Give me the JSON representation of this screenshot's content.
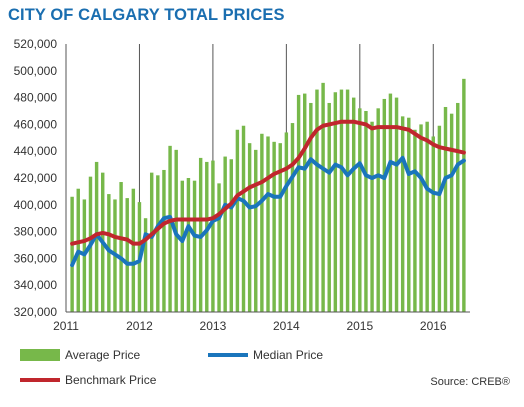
{
  "chart_data": {
    "type": "bar",
    "title": "CITY OF CALGARY TOTAL PRICES",
    "ylim": [
      320000,
      520000
    ],
    "yticks": [
      "520,000",
      "500,000",
      "480,000",
      "460,000",
      "440,000",
      "420,000",
      "400,000",
      "380,000",
      "360,000",
      "340,000",
      "320,000"
    ],
    "ytick_values": [
      520000,
      500000,
      480000,
      460000,
      440000,
      420000,
      400000,
      380000,
      360000,
      340000,
      320000
    ],
    "xticks": [
      "2011",
      "2012",
      "2013",
      "2014",
      "2015",
      "2016"
    ],
    "x_start": "2011-01",
    "x_end": "2016-05",
    "grid": "vertical-year-lines",
    "legend_placement": "bottom",
    "series": [
      {
        "name": "Average Price",
        "kind": "bar",
        "color": "#77b84a",
        "values": [
          406000,
          412000,
          404000,
          421000,
          432000,
          424000,
          408000,
          404000,
          417000,
          405000,
          412000,
          402000,
          390000,
          424000,
          422000,
          426000,
          444000,
          441000,
          418000,
          420000,
          418000,
          435000,
          432000,
          433000,
          416000,
          436000,
          434000,
          456000,
          459000,
          446000,
          441000,
          453000,
          451000,
          447000,
          446000,
          454000,
          461000,
          482000,
          483000,
          476000,
          486000,
          491000,
          476000,
          484000,
          486000,
          486000,
          480000,
          472000,
          470000,
          462000,
          472000,
          479000,
          483000,
          480000,
          466000,
          465000,
          456000,
          460000,
          462000,
          451000,
          459000,
          473000,
          468000,
          476000,
          494000
        ]
      },
      {
        "name": "Median Price",
        "kind": "line",
        "color": "#1a75bc",
        "values": [
          355000,
          365000,
          363000,
          370000,
          378000,
          372000,
          366000,
          363000,
          360000,
          356000,
          356000,
          358000,
          378000,
          376000,
          384000,
          390000,
          391000,
          378000,
          373000,
          384000,
          377000,
          376000,
          381000,
          388000,
          390000,
          400000,
          398000,
          405000,
          403000,
          398000,
          399000,
          403000,
          408000,
          406000,
          406000,
          414000,
          421000,
          428000,
          427000,
          434000,
          430000,
          427000,
          424000,
          430000,
          428000,
          422000,
          427000,
          431000,
          422000,
          420000,
          422000,
          420000,
          432000,
          430000,
          435000,
          423000,
          425000,
          420000,
          412000,
          409000,
          408000,
          420000,
          422000,
          430000,
          433000
        ]
      },
      {
        "name": "Benchmark Price",
        "kind": "line",
        "color": "#c0262d",
        "values": [
          371000,
          372000,
          373000,
          375000,
          378000,
          379000,
          378000,
          376000,
          375000,
          374000,
          371000,
          371000,
          374000,
          378000,
          382000,
          386000,
          388000,
          389000,
          389000,
          389000,
          389000,
          389000,
          389000,
          390000,
          393000,
          397000,
          401000,
          407000,
          410000,
          413000,
          415000,
          417000,
          420000,
          423000,
          425000,
          427000,
          430000,
          435000,
          442000,
          450000,
          456000,
          459000,
          460000,
          461000,
          462000,
          462000,
          462000,
          461000,
          460000,
          457000,
          458000,
          458000,
          458000,
          458000,
          457000,
          456000,
          453000,
          450000,
          448000,
          445000,
          443000,
          442000,
          441000,
          440000,
          439000
        ]
      }
    ],
    "source": "Source: CREB®"
  }
}
